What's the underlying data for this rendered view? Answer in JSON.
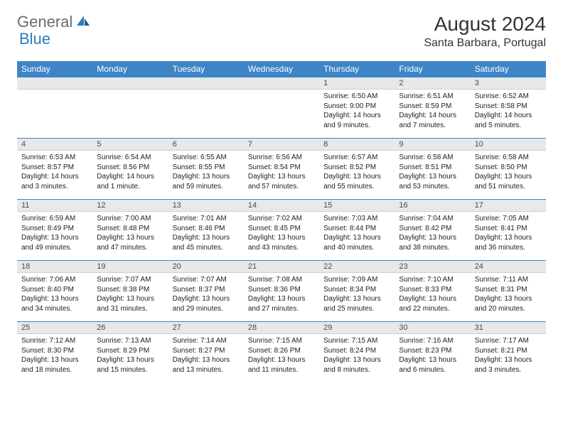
{
  "brand": {
    "general": "General",
    "blue": "Blue",
    "icon_color": "#2b7bbf"
  },
  "title": {
    "month": "August 2024",
    "location": "Santa Barbara, Portugal"
  },
  "colors": {
    "header_bg": "#3d85c6",
    "header_text": "#ffffff",
    "daynum_bg": "#e8e8e8",
    "border": "#3d85c6"
  },
  "weekdays": [
    "Sunday",
    "Monday",
    "Tuesday",
    "Wednesday",
    "Thursday",
    "Friday",
    "Saturday"
  ],
  "weeks": [
    [
      {
        "n": "",
        "lines": []
      },
      {
        "n": "",
        "lines": []
      },
      {
        "n": "",
        "lines": []
      },
      {
        "n": "",
        "lines": []
      },
      {
        "n": "1",
        "lines": [
          "Sunrise: 6:50 AM",
          "Sunset: 9:00 PM",
          "Daylight: 14 hours",
          "and 9 minutes."
        ]
      },
      {
        "n": "2",
        "lines": [
          "Sunrise: 6:51 AM",
          "Sunset: 8:59 PM",
          "Daylight: 14 hours",
          "and 7 minutes."
        ]
      },
      {
        "n": "3",
        "lines": [
          "Sunrise: 6:52 AM",
          "Sunset: 8:58 PM",
          "Daylight: 14 hours",
          "and 5 minutes."
        ]
      }
    ],
    [
      {
        "n": "4",
        "lines": [
          "Sunrise: 6:53 AM",
          "Sunset: 8:57 PM",
          "Daylight: 14 hours",
          "and 3 minutes."
        ]
      },
      {
        "n": "5",
        "lines": [
          "Sunrise: 6:54 AM",
          "Sunset: 8:56 PM",
          "Daylight: 14 hours",
          "and 1 minute."
        ]
      },
      {
        "n": "6",
        "lines": [
          "Sunrise: 6:55 AM",
          "Sunset: 8:55 PM",
          "Daylight: 13 hours",
          "and 59 minutes."
        ]
      },
      {
        "n": "7",
        "lines": [
          "Sunrise: 6:56 AM",
          "Sunset: 8:54 PM",
          "Daylight: 13 hours",
          "and 57 minutes."
        ]
      },
      {
        "n": "8",
        "lines": [
          "Sunrise: 6:57 AM",
          "Sunset: 8:52 PM",
          "Daylight: 13 hours",
          "and 55 minutes."
        ]
      },
      {
        "n": "9",
        "lines": [
          "Sunrise: 6:58 AM",
          "Sunset: 8:51 PM",
          "Daylight: 13 hours",
          "and 53 minutes."
        ]
      },
      {
        "n": "10",
        "lines": [
          "Sunrise: 6:58 AM",
          "Sunset: 8:50 PM",
          "Daylight: 13 hours",
          "and 51 minutes."
        ]
      }
    ],
    [
      {
        "n": "11",
        "lines": [
          "Sunrise: 6:59 AM",
          "Sunset: 8:49 PM",
          "Daylight: 13 hours",
          "and 49 minutes."
        ]
      },
      {
        "n": "12",
        "lines": [
          "Sunrise: 7:00 AM",
          "Sunset: 8:48 PM",
          "Daylight: 13 hours",
          "and 47 minutes."
        ]
      },
      {
        "n": "13",
        "lines": [
          "Sunrise: 7:01 AM",
          "Sunset: 8:46 PM",
          "Daylight: 13 hours",
          "and 45 minutes."
        ]
      },
      {
        "n": "14",
        "lines": [
          "Sunrise: 7:02 AM",
          "Sunset: 8:45 PM",
          "Daylight: 13 hours",
          "and 43 minutes."
        ]
      },
      {
        "n": "15",
        "lines": [
          "Sunrise: 7:03 AM",
          "Sunset: 8:44 PM",
          "Daylight: 13 hours",
          "and 40 minutes."
        ]
      },
      {
        "n": "16",
        "lines": [
          "Sunrise: 7:04 AM",
          "Sunset: 8:42 PM",
          "Daylight: 13 hours",
          "and 38 minutes."
        ]
      },
      {
        "n": "17",
        "lines": [
          "Sunrise: 7:05 AM",
          "Sunset: 8:41 PM",
          "Daylight: 13 hours",
          "and 36 minutes."
        ]
      }
    ],
    [
      {
        "n": "18",
        "lines": [
          "Sunrise: 7:06 AM",
          "Sunset: 8:40 PM",
          "Daylight: 13 hours",
          "and 34 minutes."
        ]
      },
      {
        "n": "19",
        "lines": [
          "Sunrise: 7:07 AM",
          "Sunset: 8:38 PM",
          "Daylight: 13 hours",
          "and 31 minutes."
        ]
      },
      {
        "n": "20",
        "lines": [
          "Sunrise: 7:07 AM",
          "Sunset: 8:37 PM",
          "Daylight: 13 hours",
          "and 29 minutes."
        ]
      },
      {
        "n": "21",
        "lines": [
          "Sunrise: 7:08 AM",
          "Sunset: 8:36 PM",
          "Daylight: 13 hours",
          "and 27 minutes."
        ]
      },
      {
        "n": "22",
        "lines": [
          "Sunrise: 7:09 AM",
          "Sunset: 8:34 PM",
          "Daylight: 13 hours",
          "and 25 minutes."
        ]
      },
      {
        "n": "23",
        "lines": [
          "Sunrise: 7:10 AM",
          "Sunset: 8:33 PM",
          "Daylight: 13 hours",
          "and 22 minutes."
        ]
      },
      {
        "n": "24",
        "lines": [
          "Sunrise: 7:11 AM",
          "Sunset: 8:31 PM",
          "Daylight: 13 hours",
          "and 20 minutes."
        ]
      }
    ],
    [
      {
        "n": "25",
        "lines": [
          "Sunrise: 7:12 AM",
          "Sunset: 8:30 PM",
          "Daylight: 13 hours",
          "and 18 minutes."
        ]
      },
      {
        "n": "26",
        "lines": [
          "Sunrise: 7:13 AM",
          "Sunset: 8:29 PM",
          "Daylight: 13 hours",
          "and 15 minutes."
        ]
      },
      {
        "n": "27",
        "lines": [
          "Sunrise: 7:14 AM",
          "Sunset: 8:27 PM",
          "Daylight: 13 hours",
          "and 13 minutes."
        ]
      },
      {
        "n": "28",
        "lines": [
          "Sunrise: 7:15 AM",
          "Sunset: 8:26 PM",
          "Daylight: 13 hours",
          "and 11 minutes."
        ]
      },
      {
        "n": "29",
        "lines": [
          "Sunrise: 7:15 AM",
          "Sunset: 8:24 PM",
          "Daylight: 13 hours",
          "and 8 minutes."
        ]
      },
      {
        "n": "30",
        "lines": [
          "Sunrise: 7:16 AM",
          "Sunset: 8:23 PM",
          "Daylight: 13 hours",
          "and 6 minutes."
        ]
      },
      {
        "n": "31",
        "lines": [
          "Sunrise: 7:17 AM",
          "Sunset: 8:21 PM",
          "Daylight: 13 hours",
          "and 3 minutes."
        ]
      }
    ]
  ]
}
